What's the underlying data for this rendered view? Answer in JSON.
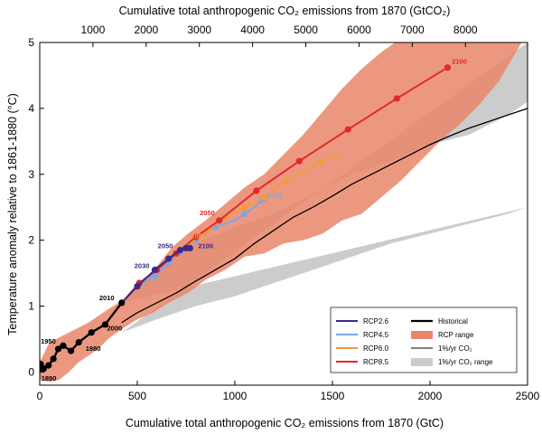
{
  "chart_data": {
    "type": "line",
    "xlabel": "Cumulative total anthropogenic CO₂ emissions from 1870 (GtC)",
    "x2label": "Cumulative total anthropogenic CO₂ emissions from 1870 (GtCO₂)",
    "ylabel": "Temperature anomaly relative to 1861-1880 (°C)",
    "xlim": [
      0,
      2500
    ],
    "ylim": [
      -0.2,
      5
    ],
    "x_ticks": [
      0,
      500,
      1000,
      1500,
      2000,
      2500
    ],
    "x2_ticks": [
      1000,
      2000,
      3000,
      4000,
      5000,
      6000,
      7000,
      8000
    ],
    "y_ticks": [
      0,
      1,
      2,
      3,
      4,
      5
    ],
    "legend_position": "bottom-right",
    "legend": [
      {
        "label": "RCP2.6",
        "color": "#3b2a8c",
        "kind": "line"
      },
      {
        "label": "RCP4.5",
        "color": "#7ea6dd",
        "kind": "line"
      },
      {
        "label": "RCP6.0",
        "color": "#f39a3d",
        "kind": "line"
      },
      {
        "label": "RCP8.5",
        "color": "#e2282a",
        "kind": "line"
      },
      {
        "label": "Historical",
        "color": "#000000",
        "kind": "thickline"
      },
      {
        "label": "RCP range",
        "color": "#e9866a",
        "kind": "fill"
      },
      {
        "label": "1%/yr CO₂",
        "color": "#000000",
        "kind": "thinline"
      },
      {
        "label": "1%/yr CO₂ range",
        "color": "#cccccc",
        "kind": "fill"
      }
    ],
    "ranges": [
      {
        "name": "1%/yr CO₂ range",
        "color": "#cccccc",
        "opacity": 1,
        "upper": [
          [
            420,
            1.05
          ],
          [
            600,
            1.55
          ],
          [
            800,
            1.95
          ],
          [
            1000,
            2.2
          ],
          [
            1200,
            2.4
          ],
          [
            1400,
            2.7
          ],
          [
            1600,
            3.0
          ],
          [
            1800,
            3.2
          ],
          [
            2000,
            3.45
          ],
          [
            2200,
            3.6
          ],
          [
            2400,
            3.9
          ],
          [
            2500,
            4.1
          ],
          [
            2500,
            5.0
          ]
        ],
        "lower": [
          [
            420,
            0.6
          ],
          [
            600,
            0.8
          ],
          [
            800,
            1.0
          ],
          [
            1000,
            1.15
          ],
          [
            1200,
            1.35
          ],
          [
            1400,
            1.55
          ],
          [
            1600,
            1.75
          ],
          [
            1800,
            1.95
          ],
          [
            2000,
            2.1
          ],
          [
            2200,
            2.25
          ],
          [
            2400,
            2.4
          ],
          [
            2500,
            2.5
          ]
        ]
      },
      {
        "name": "RCP range",
        "color": "#e9866a",
        "opacity": 0.85,
        "upper": [
          [
            0,
            0.15
          ],
          [
            50,
            0.45
          ],
          [
            150,
            0.6
          ],
          [
            250,
            0.75
          ],
          [
            350,
            0.95
          ],
          [
            430,
            1.1
          ],
          [
            520,
            1.35
          ],
          [
            600,
            1.6
          ],
          [
            680,
            1.9
          ],
          [
            760,
            2.1
          ],
          [
            850,
            2.3
          ],
          [
            950,
            2.55
          ],
          [
            1050,
            2.8
          ],
          [
            1150,
            3.0
          ],
          [
            1250,
            3.3
          ],
          [
            1350,
            3.6
          ],
          [
            1450,
            3.95
          ],
          [
            1550,
            4.3
          ],
          [
            1650,
            4.6
          ],
          [
            1750,
            4.85
          ],
          [
            1820,
            5.0
          ],
          [
            2470,
            5.0
          ]
        ],
        "lower": [
          [
            2470,
            5.0
          ],
          [
            2350,
            4.4
          ],
          [
            2250,
            4.05
          ],
          [
            2150,
            3.75
          ],
          [
            2050,
            3.5
          ],
          [
            1950,
            3.2
          ],
          [
            1850,
            2.9
          ],
          [
            1750,
            2.65
          ],
          [
            1650,
            2.4
          ],
          [
            1550,
            2.3
          ],
          [
            1450,
            2.1
          ],
          [
            1350,
            2.0
          ],
          [
            1250,
            1.95
          ],
          [
            1150,
            1.8
          ],
          [
            1050,
            1.75
          ],
          [
            950,
            1.55
          ],
          [
            850,
            1.4
          ],
          [
            760,
            1.2
          ],
          [
            660,
            1.05
          ],
          [
            580,
            0.9
          ],
          [
            500,
            0.8
          ],
          [
            420,
            0.65
          ],
          [
            350,
            0.5
          ],
          [
            300,
            0.35
          ],
          [
            250,
            0.25
          ],
          [
            200,
            0.15
          ],
          [
            150,
            0.0
          ],
          [
            100,
            -0.12
          ],
          [
            50,
            -0.15
          ],
          [
            0,
            -0.12
          ]
        ]
      }
    ],
    "series": [
      {
        "name": "1%/yr CO₂",
        "color": "#000000",
        "width": 1.3,
        "markers": false,
        "x": [
          420,
          500,
          600,
          700,
          800,
          900,
          1000,
          1100,
          1200,
          1300,
          1400,
          1500,
          1600,
          1700,
          1800,
          1900,
          2000,
          2100,
          2200,
          2300,
          2400,
          2500
        ],
        "y": [
          0.75,
          0.9,
          1.05,
          1.2,
          1.38,
          1.55,
          1.72,
          1.95,
          2.15,
          2.35,
          2.5,
          2.67,
          2.85,
          3.0,
          3.15,
          3.3,
          3.45,
          3.58,
          3.7,
          3.8,
          3.9,
          4.0
        ]
      },
      {
        "name": "RCP4.5",
        "color": "#7ea6dd",
        "width": 2,
        "markers": true,
        "x": [
          420,
          500,
          590,
          660,
          720,
          800,
          900,
          1000,
          1050,
          1100,
          1130,
          1150
        ],
        "y": [
          1.05,
          1.3,
          1.45,
          1.65,
          1.82,
          2.0,
          2.2,
          2.3,
          2.4,
          2.5,
          2.6,
          2.63
        ],
        "marker_x": [
          500,
          590,
          660,
          720,
          800,
          900,
          1050,
          1130,
          1150
        ],
        "marker_y": [
          1.3,
          1.45,
          1.65,
          1.82,
          2.0,
          2.2,
          2.4,
          2.6,
          2.63
        ]
      },
      {
        "name": "RCP6.0",
        "color": "#f39a3d",
        "width": 2,
        "markers": true,
        "x": [
          420,
          510,
          600,
          690,
          770,
          860,
          950,
          1050,
          1150,
          1260,
          1440
        ],
        "y": [
          1.05,
          1.35,
          1.55,
          1.78,
          1.95,
          2.15,
          2.35,
          2.5,
          2.65,
          2.9,
          3.18
        ],
        "marker_x": [
          510,
          600,
          690,
          860,
          950,
          1050,
          1150,
          1260,
          1440
        ],
        "marker_y": [
          1.35,
          1.55,
          1.78,
          2.15,
          2.35,
          2.5,
          2.65,
          2.9,
          3.18
        ]
      },
      {
        "name": "RCP8.5",
        "color": "#e2282a",
        "width": 2,
        "markers": true,
        "x": [
          420,
          510,
          600,
          700,
          800,
          920,
          1110,
          1330,
          1580,
          1830,
          2090
        ],
        "y": [
          1.05,
          1.35,
          1.55,
          1.8,
          2.05,
          2.3,
          2.75,
          3.2,
          3.68,
          4.15,
          4.62
        ],
        "marker_x": [
          510,
          600,
          700,
          800,
          920,
          1110,
          1330,
          1580,
          1830,
          2090
        ],
        "marker_y": [
          1.35,
          1.55,
          1.8,
          2.05,
          2.3,
          2.75,
          3.2,
          3.68,
          4.15,
          4.62
        ]
      },
      {
        "name": "RCP2.6",
        "color": "#3b2a8c",
        "width": 2,
        "markers": true,
        "x": [
          420,
          500,
          590,
          660,
          720,
          750,
          770
        ],
        "y": [
          1.05,
          1.3,
          1.55,
          1.72,
          1.85,
          1.88,
          1.88
        ],
        "marker_x": [
          500,
          590,
          660,
          720,
          750,
          770
        ],
        "marker_y": [
          1.3,
          1.55,
          1.72,
          1.85,
          1.88,
          1.88
        ]
      },
      {
        "name": "Historical",
        "color": "#000000",
        "width": 2.4,
        "markers": true,
        "x": [
          0,
          5,
          20,
          45,
          70,
          95,
          120,
          160,
          200,
          265,
          335,
          420
        ],
        "y": [
          0.0,
          0.12,
          0.05,
          0.1,
          0.2,
          0.35,
          0.4,
          0.32,
          0.45,
          0.6,
          0.72,
          1.05
        ],
        "marker_x": [
          5,
          20,
          45,
          70,
          95,
          120,
          160,
          200,
          265,
          335,
          420
        ],
        "marker_y": [
          0.12,
          0.05,
          0.1,
          0.2,
          0.35,
          0.4,
          0.32,
          0.45,
          0.6,
          0.72,
          1.05
        ]
      }
    ],
    "annotations": [
      {
        "text": "1890",
        "x": 8,
        "y": -0.13,
        "color": "#000000"
      },
      {
        "text": "1950",
        "x": 5,
        "y": 0.43,
        "color": "#000000"
      },
      {
        "text": "1980",
        "x": 235,
        "y": 0.32,
        "color": "#000000"
      },
      {
        "text": "2000",
        "x": 345,
        "y": 0.63,
        "color": "#000000"
      },
      {
        "text": "2010",
        "x": 305,
        "y": 1.09,
        "color": "#000000"
      },
      {
        "text": "2030",
        "x": 485,
        "y": 1.58,
        "color": "#3b2a8c"
      },
      {
        "text": "2050",
        "x": 605,
        "y": 1.88,
        "color": "#3b2a8c"
      },
      {
        "text": "2100",
        "x": 812,
        "y": 1.88,
        "color": "#3b2a8c"
      },
      {
        "text": "2050",
        "x": 820,
        "y": 2.38,
        "color": "#e2282a"
      },
      {
        "text": "2050",
        "x": 775,
        "y": 2.03,
        "color": "#f39a3d"
      },
      {
        "text": "2100",
        "x": 1168,
        "y": 2.65,
        "color": "#7ea6dd"
      },
      {
        "text": "2100",
        "x": 1460,
        "y": 3.22,
        "color": "#f39a3d"
      },
      {
        "text": "2100",
        "x": 2112,
        "y": 4.68,
        "color": "#e2282a"
      }
    ]
  }
}
